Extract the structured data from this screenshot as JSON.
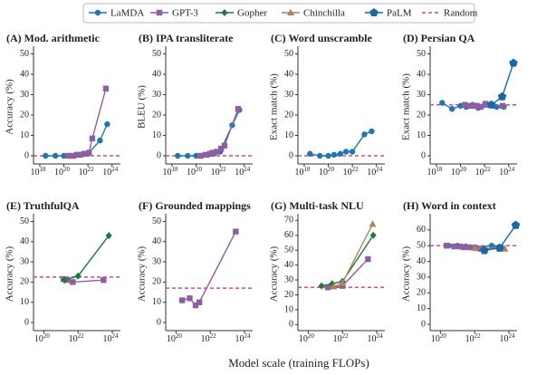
{
  "legend": [
    {
      "name": "LaMDA",
      "color": "#1f77b4",
      "marker": "circle"
    },
    {
      "name": "GPT-3",
      "color": "#8e5ea2",
      "marker": "square"
    },
    {
      "name": "Gopher",
      "color": "#1b7a3e",
      "marker": "diamond"
    },
    {
      "name": "Chinchilla",
      "color": "#b0835b",
      "marker": "triangle"
    },
    {
      "name": "PaLM",
      "color": "#1768a8",
      "marker": "pentagon"
    },
    {
      "name": "Random",
      "color": "#e5457d",
      "marker": "dashed"
    }
  ],
  "x_label": "Model scale (training FLOPs)",
  "chart_data": [
    {
      "type": "line",
      "title": "(A) Mod. arithmetic",
      "y_label": "Accuracy (%)",
      "log_x": true,
      "xlim": [
        3e+17,
        5e+24
      ],
      "xticks": [
        {
          "value": 1e+18,
          "label": "10^18"
        },
        {
          "value": 1e+20,
          "label": "10^20"
        },
        {
          "value": 1e+22,
          "label": "10^22"
        },
        {
          "value": 1e+24,
          "label": "10^24"
        }
      ],
      "ylim": [
        -4,
        52
      ],
      "yticks": [
        0,
        10,
        20,
        30,
        40,
        50
      ],
      "random": 0,
      "series": [
        {
          "name": "LaMDA",
          "x": [
            3e+18,
            2e+19,
            1e+20,
            3e+20,
            1e+21,
            3e+21,
            1e+22,
            1e+23,
            4e+23
          ],
          "values": [
            0,
            0,
            0,
            0,
            0.5,
            0.5,
            1,
            7.5,
            15.5
          ]
        },
        {
          "name": "GPT-3",
          "x": [
            2.3e+20,
            6.3e+20,
            1.4e+21,
            2.3e+21,
            4.9e+21,
            1.2e+22,
            2.3e+22,
            3.1e+23
          ],
          "values": [
            0,
            0,
            0.5,
            0.5,
            1,
            1.5,
            8.5,
            33
          ]
        }
      ]
    },
    {
      "type": "line",
      "title": "(B) IPA transliterate",
      "y_label": "BLEU (%)",
      "log_x": true,
      "xlim": [
        3e+17,
        5e+24
      ],
      "xticks": [
        {
          "value": 1e+18,
          "label": "10^18"
        },
        {
          "value": 1e+20,
          "label": "10^20"
        },
        {
          "value": 1e+22,
          "label": "10^22"
        },
        {
          "value": 1e+24,
          "label": "10^24"
        }
      ],
      "ylim": [
        -4,
        52
      ],
      "yticks": [
        0,
        10,
        20,
        30,
        40,
        50
      ],
      "random": 0,
      "series": [
        {
          "name": "LaMDA",
          "x": [
            3e+18,
            2e+19,
            1e+20,
            3e+20,
            1e+21,
            3e+21,
            1e+22,
            1e+23,
            4e+23
          ],
          "values": [
            0,
            0,
            0,
            0,
            0.5,
            1,
            2,
            15,
            22.5
          ]
        },
        {
          "name": "GPT-3",
          "x": [
            2.3e+20,
            6.3e+20,
            1.4e+21,
            2.3e+21,
            4.9e+21,
            1.2e+22,
            2.3e+22,
            3.1e+23
          ],
          "values": [
            0,
            0.5,
            1,
            1.5,
            2,
            3.5,
            5,
            23
          ]
        }
      ]
    },
    {
      "type": "line",
      "title": "(C) Word unscramble",
      "y_label": "Exact match (%)",
      "log_x": true,
      "xlim": [
        3e+17,
        5e+24
      ],
      "xticks": [
        {
          "value": 1e+18,
          "label": "10^18"
        },
        {
          "value": 1e+20,
          "label": "10^20"
        },
        {
          "value": 1e+22,
          "label": "10^22"
        },
        {
          "value": 1e+24,
          "label": "10^24"
        }
      ],
      "ylim": [
        -4,
        52
      ],
      "yticks": [
        0,
        10,
        20,
        30,
        40,
        50
      ],
      "random": 0,
      "series": [
        {
          "name": "LaMDA",
          "x": [
            3e+18,
            2e+19,
            1e+20,
            3e+20,
            1e+21,
            3e+21,
            1e+22,
            1e+23,
            4e+23
          ],
          "values": [
            1,
            0,
            0,
            0.5,
            1,
            2,
            2,
            10.5,
            12
          ]
        }
      ]
    },
    {
      "type": "line",
      "title": "(D) Persian QA",
      "y_label": "Exact match (%)",
      "log_x": true,
      "xlim": [
        3e+17,
        5e+24
      ],
      "xticks": [
        {
          "value": 1e+18,
          "label": "10^18"
        },
        {
          "value": 1e+20,
          "label": "10^20"
        },
        {
          "value": 1e+22,
          "label": "10^22"
        },
        {
          "value": 1e+24,
          "label": "10^24"
        }
      ],
      "ylim": [
        -4,
        52
      ],
      "yticks": [
        0,
        10,
        20,
        30,
        40,
        50
      ],
      "random": 25,
      "series": [
        {
          "name": "LaMDA",
          "x": [
            3e+18,
            2e+19,
            1e+20,
            3e+20,
            1e+21,
            3e+21,
            1e+22,
            1e+23,
            4e+23
          ],
          "values": [
            26,
            23,
            24.5,
            24,
            25,
            23.5,
            25,
            24,
            24
          ]
        },
        {
          "name": "GPT-3",
          "x": [
            2.3e+20,
            6.3e+20,
            1.4e+21,
            2.3e+21,
            4.9e+21,
            1.2e+22,
            2.3e+22,
            3.1e+23
          ],
          "values": [
            25,
            24.5,
            24.5,
            24.5,
            24,
            25.5,
            25,
            24.5
          ]
        },
        {
          "name": "PaLM",
          "x": [
            3.7e+22,
            2.9e+23,
            2.5e+24
          ],
          "values": [
            25,
            29,
            45.5
          ]
        }
      ]
    },
    {
      "type": "line",
      "title": "(E) TruthfulQA",
      "y_label": "Accuracy (%)",
      "log_x": true,
      "xlim": [
        2.5e+19,
        3e+24
      ],
      "xticks": [
        {
          "value": 1e+20,
          "label": "10^20"
        },
        {
          "value": 1e+22,
          "label": "10^22"
        },
        {
          "value": 1e+24,
          "label": "10^24"
        }
      ],
      "ylim": [
        -4,
        52
      ],
      "yticks": [
        0,
        10,
        20,
        30,
        40,
        50
      ],
      "random": 22.5,
      "series": [
        {
          "name": "GPT-3",
          "x": [
            1.4e+21,
            2.3e+21,
            4.9e+21,
            3.1e+23
          ],
          "values": [
            21.5,
            21,
            20,
            21
          ]
        },
        {
          "name": "Gopher",
          "x": [
            1.6e+21,
            1e+22,
            6.3e+23
          ],
          "values": [
            21,
            23,
            43
          ]
        }
      ]
    },
    {
      "type": "line",
      "title": "(F) Grounded mappings",
      "y_label": "Accuracy (%)",
      "log_x": true,
      "xlim": [
        2.5e+19,
        3e+24
      ],
      "xticks": [
        {
          "value": 1e+20,
          "label": "10^20"
        },
        {
          "value": 1e+22,
          "label": "10^22"
        },
        {
          "value": 1e+24,
          "label": "10^24"
        }
      ],
      "ylim": [
        -4,
        52
      ],
      "yticks": [
        0,
        10,
        20,
        30,
        40,
        50
      ],
      "random": 17,
      "series": [
        {
          "name": "GPT-3",
          "x": [
            2.3e+20,
            6.3e+20,
            1.4e+21,
            2.3e+21,
            3.1e+23
          ],
          "values": [
            11,
            12,
            8.5,
            10,
            45
          ]
        }
      ]
    },
    {
      "type": "line",
      "title": "(G) Multi-task NLU",
      "y_label": "Accuracy (%)",
      "log_x": true,
      "xlim": [
        2.5e+19,
        3e+24
      ],
      "xticks": [
        {
          "value": 1e+20,
          "label": "10^20"
        },
        {
          "value": 1e+22,
          "label": "10^22"
        },
        {
          "value": 1e+24,
          "label": "10^24"
        }
      ],
      "ylim": [
        -4,
        72
      ],
      "yticks": [
        0,
        10,
        20,
        30,
        40,
        50,
        60,
        70
      ],
      "random": 25,
      "series": [
        {
          "name": "GPT-3",
          "x": [
            1.4e+21,
            1e+22,
            3.1e+23
          ],
          "values": [
            25,
            26,
            44
          ]
        },
        {
          "name": "Gopher",
          "x": [
            6e+20,
            2.5e+21,
            1e+22,
            6.3e+23
          ],
          "values": [
            26,
            27.5,
            29,
            60
          ]
        },
        {
          "name": "Chinchilla",
          "x": [
            3e+21,
            1e+22,
            5.8e+23
          ],
          "values": [
            25.5,
            28,
            67.5
          ]
        }
      ]
    },
    {
      "type": "line",
      "title": "(H) Word in context",
      "y_label": "Accuracy (%)",
      "log_x": true,
      "xlim": [
        2.5e+19,
        3e+24
      ],
      "xticks": [
        {
          "value": 1e+20,
          "label": "10^20"
        },
        {
          "value": 1e+22,
          "label": "10^22"
        },
        {
          "value": 1e+24,
          "label": "10^24"
        }
      ],
      "ylim": [
        -4,
        68
      ],
      "yticks": [
        0,
        10,
        20,
        30,
        40,
        50,
        60
      ],
      "random": 50,
      "series": [
        {
          "name": "LaMDA",
          "x": [
            3e+20,
            1e+21,
            3e+21,
            1e+22,
            1e+23,
            4e+23
          ],
          "values": [
            50,
            50,
            49.5,
            49,
            50,
            48.5
          ]
        },
        {
          "name": "GPT-3",
          "x": [
            2.3e+20,
            6.3e+20,
            1.4e+21,
            2.3e+21,
            4.9e+21,
            1.2e+22,
            2.3e+22,
            3.1e+23
          ],
          "values": [
            50,
            49.5,
            49.5,
            49,
            49,
            48.5,
            48,
            49
          ]
        },
        {
          "name": "Chinchilla",
          "x": [
            1e+22,
            5.8e+23
          ],
          "values": [
            48.5,
            48
          ]
        },
        {
          "name": "PaLM",
          "x": [
            3.7e+22,
            2.9e+23,
            2.5e+24
          ],
          "values": [
            47,
            48.5,
            63
          ]
        }
      ]
    }
  ]
}
